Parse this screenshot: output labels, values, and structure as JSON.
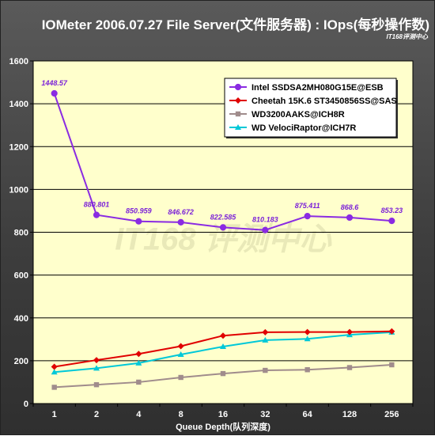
{
  "title": "IOMeter 2006.07.27 File Server(文件服务器) : IOps(每秒操作数)",
  "source_tag": "IT168评测中心",
  "watermark": "IT168 评测中心",
  "colors": {
    "plot_background": "#ffffcc",
    "figure_background": "#4a4a4a",
    "grid": "#000000",
    "data_label": "#7a1fd8"
  },
  "chart_data": {
    "type": "line",
    "title": "IOMeter 2006.07.27 File Server(文件服务器) : IOps(每秒操作数)",
    "xlabel": "Queue Depth(队列深度)",
    "ylabel": "",
    "categories": [
      "1",
      "2",
      "4",
      "8",
      "16",
      "32",
      "64",
      "128",
      "256"
    ],
    "ylim": [
      0,
      1600
    ],
    "yticks": [
      0,
      200,
      400,
      600,
      800,
      1000,
      1200,
      1400,
      1600
    ],
    "grid": true,
    "legend_position": "top-right",
    "series": [
      {
        "name": "Intel SSDSA2MH080G15E@ESB",
        "color": "#8a2be2",
        "marker": "circle",
        "values": [
          1448.57,
          880.801,
          850.959,
          846.672,
          822.585,
          810.183,
          875.411,
          868.6,
          853.23
        ],
        "labels": [
          "1448.57",
          "880.801",
          "850.959",
          "846.672",
          "822.585",
          "810.183",
          "875.411",
          "868.6",
          "853.23"
        ]
      },
      {
        "name": "Cheetah 15K.6 ST3450856SS@SAS",
        "color": "#e00000",
        "marker": "diamond",
        "values": [
          172,
          203,
          232,
          268,
          317,
          333,
          334,
          334,
          337
        ]
      },
      {
        "name": "WD3200AAKS@ICH8R",
        "color": "#a08c8c",
        "marker": "square",
        "values": [
          76,
          88,
          100,
          122,
          140,
          155,
          158,
          168,
          181
        ]
      },
      {
        "name": "WD VelociRaptor@ICH7R",
        "color": "#00c8d8",
        "marker": "triangle",
        "values": [
          147,
          165,
          189,
          229,
          266,
          296,
          302,
          321,
          333
        ]
      }
    ]
  }
}
